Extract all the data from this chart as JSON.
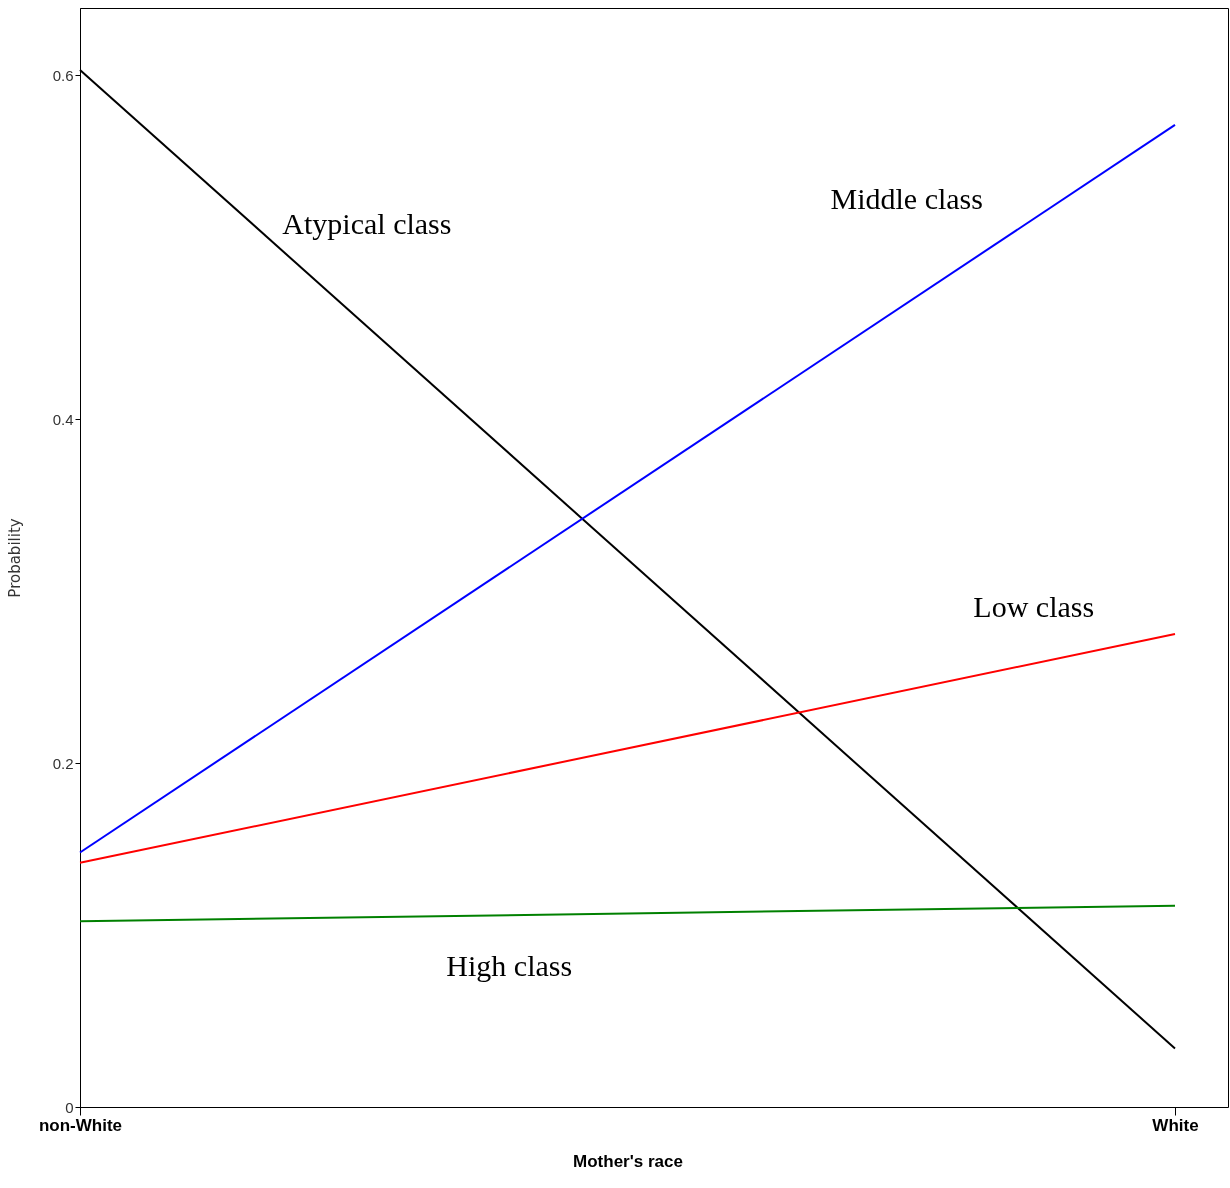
{
  "chart_data": {
    "type": "line",
    "xlabel": "Mother's race",
    "ylabel": "Probability",
    "categories": [
      "non-White",
      "White"
    ],
    "series": [
      {
        "name": "Atypical class",
        "color": "#000000",
        "values": [
          0.603,
          0.034
        ]
      },
      {
        "name": "Middle class",
        "color": "#0000ff",
        "values": [
          0.148,
          0.571
        ]
      },
      {
        "name": "Low class",
        "color": "#ff0000",
        "values": [
          0.142,
          0.275
        ]
      },
      {
        "name": "High class",
        "color": "#008000",
        "values": [
          0.108,
          0.117
        ]
      }
    ],
    "ylim": [
      0,
      0.639
    ],
    "yticks": [
      0,
      0.2,
      0.4,
      0.6
    ],
    "grid": false,
    "legend": false,
    "marker": "none",
    "line_style": "solid"
  }
}
